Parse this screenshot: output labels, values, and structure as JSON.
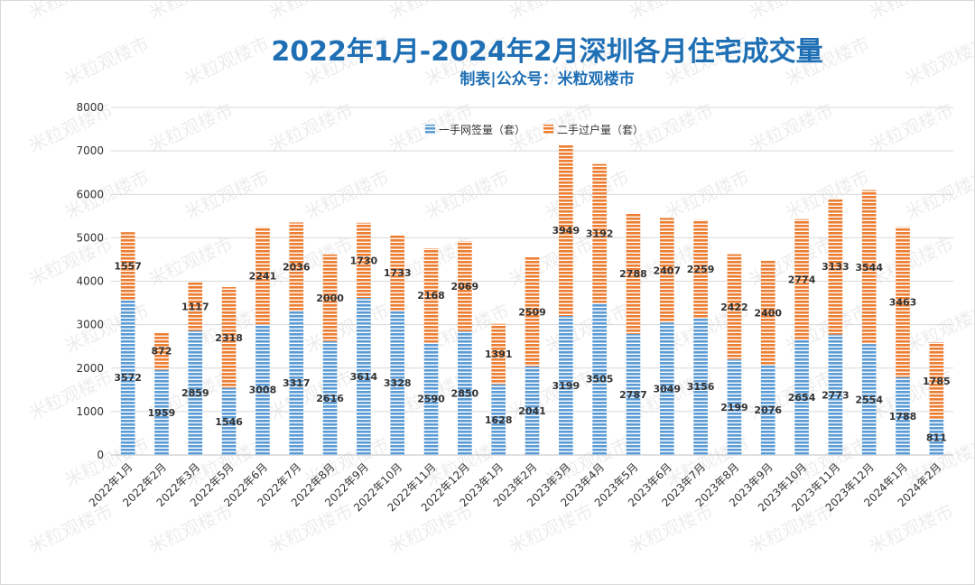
{
  "header": {
    "title": "2022年1月-2024年2月深圳各月住宅成交量",
    "subtitle": "制表|公众号：米粒观楼市"
  },
  "watermark": "米粒观楼市",
  "colors": {
    "series1": "#5b9bd5",
    "series2": "#ed7d31",
    "title": "#1f6fb4",
    "grid": "#d9d9d9"
  },
  "chart_data": {
    "type": "bar",
    "stacked": true,
    "categories": [
      "2022年1月",
      "2022年2月",
      "2022年3月",
      "2022年5月",
      "2022年6月",
      "2022年7月",
      "2022年8月",
      "2022年9月",
      "2022年10月",
      "2022年11月",
      "2022年12月",
      "2023年1月",
      "2023年2月",
      "2023年3月",
      "2023年4月",
      "2023年5月",
      "2023年6月",
      "2023年7月",
      "2023年8月",
      "2023年9月",
      "2023年10月",
      "2023年11月",
      "2023年12月",
      "2024年1月",
      "2024年2月"
    ],
    "series": [
      {
        "name": "一手网签量（套）",
        "values": [
          3572,
          1959,
          2859,
          1546,
          3008,
          3317,
          2616,
          3614,
          3328,
          2590,
          2850,
          1628,
          2041,
          3199,
          3505,
          2787,
          3049,
          3156,
          2199,
          2076,
          2654,
          2773,
          2554,
          1788,
          811
        ]
      },
      {
        "name": "二手过户量（套）",
        "values": [
          1557,
          872,
          1117,
          2318,
          2241,
          2036,
          2000,
          1730,
          1733,
          2168,
          2069,
          1391,
          2509,
          3949,
          3192,
          2788,
          2407,
          2259,
          2422,
          2400,
          2774,
          3133,
          3544,
          3463,
          1785
        ]
      }
    ],
    "yticks": [
      "0",
      "1000",
      "2000",
      "3000",
      "4000",
      "5000",
      "6000",
      "7000",
      "8000"
    ],
    "ylim": [
      0,
      8000
    ],
    "grid": true,
    "legend_position": "top"
  }
}
